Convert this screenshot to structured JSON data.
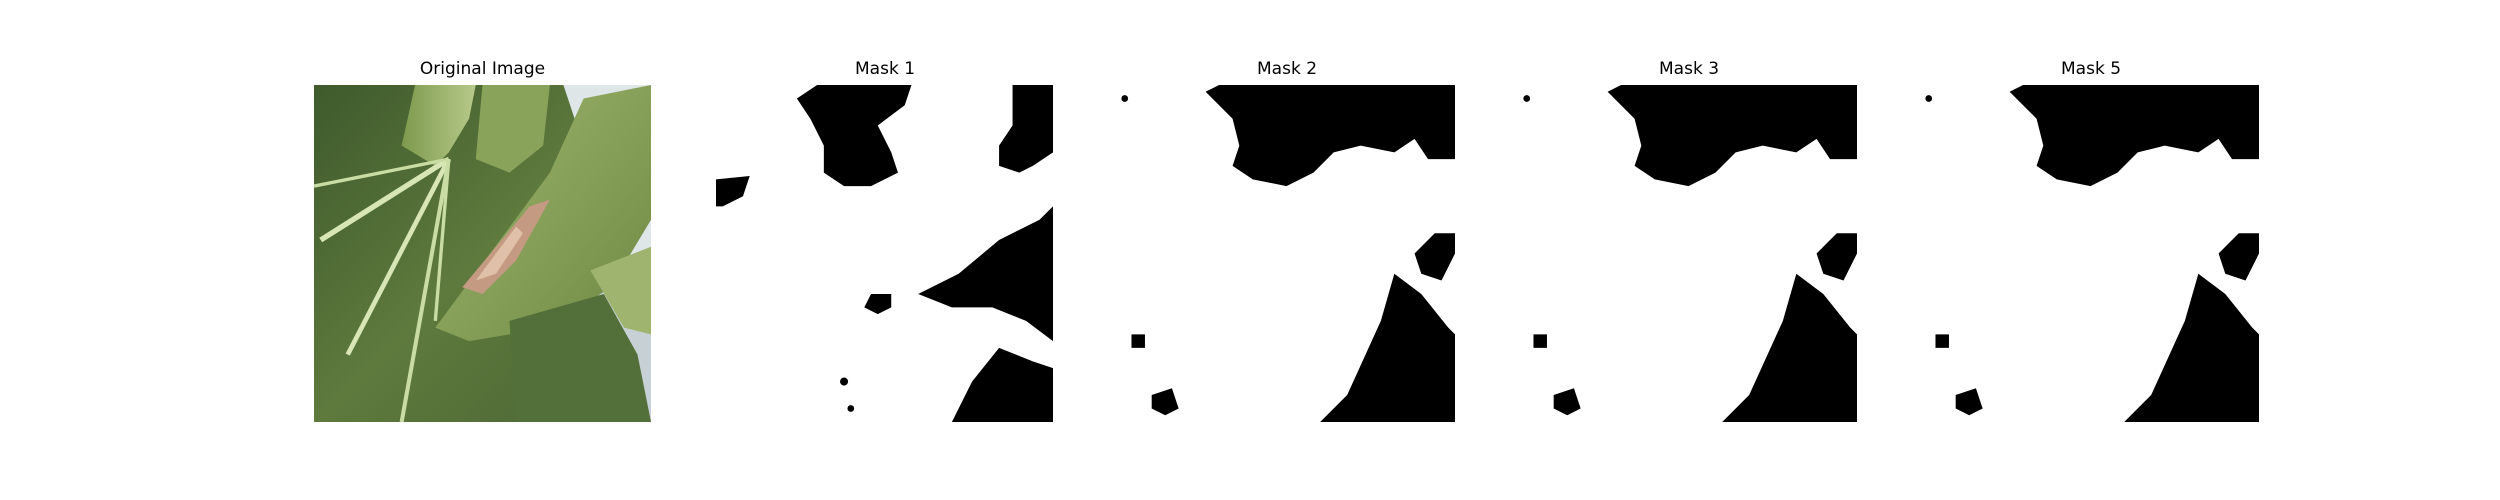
{
  "figure": {
    "panels": [
      {
        "title": "Original Image",
        "kind": "photo",
        "subject": "leaf"
      },
      {
        "title": "Mask 1",
        "kind": "mask"
      },
      {
        "title": "Mask 2",
        "kind": "mask"
      },
      {
        "title": "Mask 3",
        "kind": "mask"
      },
      {
        "title": "Mask 5",
        "kind": "mask"
      }
    ]
  },
  "colors": {
    "mask_foreground": "#ffffff",
    "mask_background": "#000000",
    "leaf_dark": "#44582f",
    "leaf_light": "#a9bf7a",
    "vein": "#d8e6b6",
    "lesion": "#c59a82"
  }
}
